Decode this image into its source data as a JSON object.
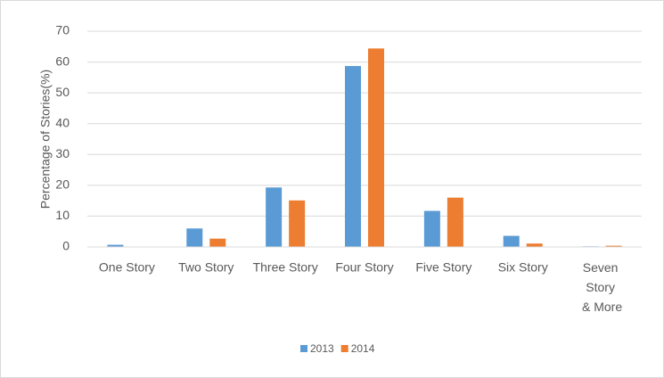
{
  "chart_data": {
    "type": "bar",
    "y_label": "Percentage of Stories(%)",
    "categories": [
      "One Story",
      "Two Story",
      "Three Story",
      "Four Story",
      "Five Story",
      "Six Story",
      "Seven Story & More"
    ],
    "series": [
      {
        "name": "2013",
        "color": "#5b9bd5",
        "values": [
          0.7,
          6,
          19.3,
          58.7,
          11.7,
          3.6,
          0.2
        ]
      },
      {
        "name": "2014",
        "color": "#ed7d31",
        "values": [
          0.1,
          2.7,
          15.1,
          64.4,
          16,
          1.1,
          0.4
        ]
      }
    ],
    "ylim": [
      0,
      70
    ],
    "yticks": [
      0,
      10,
      20,
      30,
      40,
      50,
      60,
      70
    ],
    "grid": true,
    "legend": "bottom"
  }
}
